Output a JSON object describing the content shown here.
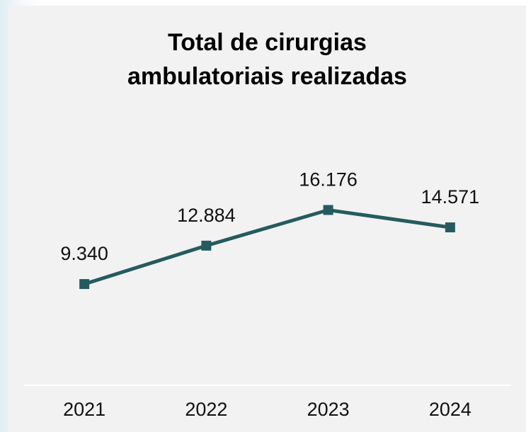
{
  "chart_data": {
    "type": "line",
    "title": "Total de cirurgias ambulatoriais realizadas",
    "categories": [
      "2021",
      "2022",
      "2023",
      "2024"
    ],
    "values": [
      9340,
      12884,
      16176,
      14571
    ],
    "value_labels": [
      "9.340",
      "12.884",
      "16.176",
      "14.571"
    ],
    "color": "#255b5e",
    "ylim": [
      0,
      20000
    ]
  }
}
